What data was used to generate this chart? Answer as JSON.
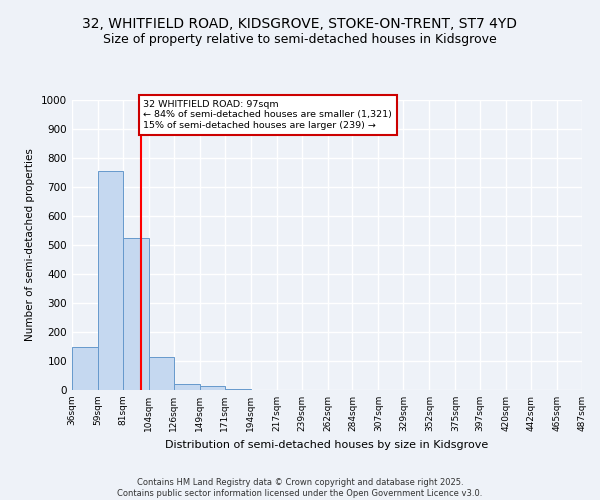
{
  "title_line1": "32, WHITFIELD ROAD, KIDSGROVE, STOKE-ON-TRENT, ST7 4YD",
  "title_line2": "Size of property relative to semi-detached houses in Kidsgrove",
  "xlabel": "Distribution of semi-detached houses by size in Kidsgrove",
  "ylabel": "Number of semi-detached properties",
  "bin_labels": [
    "36sqm",
    "59sqm",
    "81sqm",
    "104sqm",
    "126sqm",
    "149sqm",
    "171sqm",
    "194sqm",
    "217sqm",
    "239sqm",
    "262sqm",
    "284sqm",
    "307sqm",
    "329sqm",
    "352sqm",
    "375sqm",
    "397sqm",
    "420sqm",
    "442sqm",
    "465sqm",
    "487sqm"
  ],
  "bin_edges": [
    36,
    59,
    81,
    104,
    126,
    149,
    171,
    194,
    217,
    239,
    262,
    284,
    307,
    329,
    352,
    375,
    397,
    420,
    442,
    465,
    487
  ],
  "bar_heights": [
    150,
    755,
    525,
    115,
    20,
    15,
    5,
    0,
    0,
    0,
    0,
    0,
    0,
    0,
    0,
    0,
    0,
    0,
    0,
    0
  ],
  "bar_color": "#c5d8f0",
  "bar_edge_color": "#6699cc",
  "red_line_x": 97,
  "annotation_line1": "32 WHITFIELD ROAD: 97sqm",
  "annotation_line2": "← 84% of semi-detached houses are smaller (1,321)",
  "annotation_line3": "15% of semi-detached houses are larger (239) →",
  "annotation_box_color": "#ffffff",
  "annotation_border_color": "#cc0000",
  "ylim": [
    0,
    1000
  ],
  "yticks": [
    0,
    100,
    200,
    300,
    400,
    500,
    600,
    700,
    800,
    900,
    1000
  ],
  "footer_text": "Contains HM Land Registry data © Crown copyright and database right 2025.\nContains public sector information licensed under the Open Government Licence v3.0.",
  "bg_color": "#eef2f8",
  "grid_color": "#ffffff",
  "title_fontsize": 10,
  "subtitle_fontsize": 9
}
